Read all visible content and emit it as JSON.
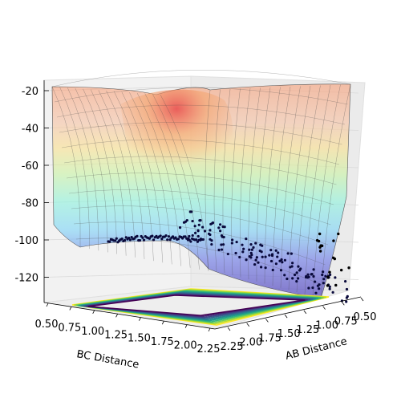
{
  "chart_data": {
    "type": "surface3d",
    "title": "",
    "xlabel": "AB Distance",
    "ylabel": "BC Distance",
    "zlabel": "",
    "z_ticks": [
      "-20",
      "-40",
      "-60",
      "-80",
      "-100",
      "-120"
    ],
    "x_ticks": [
      "0.50",
      "0.75",
      "1.00",
      "1.25",
      "1.50",
      "1.75",
      "2.00",
      "2.25"
    ],
    "y_ticks": [
      "0.50",
      "0.75",
      "1.00",
      "1.25",
      "1.50",
      "1.75",
      "2.00",
      "2.25"
    ],
    "zlim": [
      -135,
      -20
    ],
    "xlim": [
      0.5,
      2.3
    ],
    "ylim": [
      0.5,
      2.3
    ],
    "surface": "translucent potential-energy surface colored by height with a jet colormap, black wireframe",
    "scatter_color": "#0a0a3c",
    "contour_colormap": "viridis",
    "grid": true
  },
  "colors": {
    "pane": "#f2f2f2",
    "grid": "#d9d9d9",
    "wire": "#4a4a4a"
  }
}
